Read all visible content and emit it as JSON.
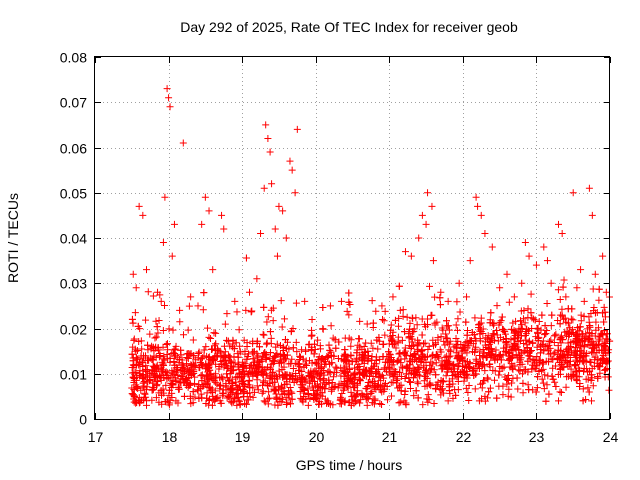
{
  "chart_data": {
    "type": "scatter",
    "title": "Day 292 of 2025, Rate Of TEC Index for receiver geob",
    "xlabel": "GPS time / hours",
    "ylabel": "ROTI / TECUs",
    "xlim": [
      17,
      24
    ],
    "ylim": [
      0,
      0.08
    ],
    "x_ticks": [
      "17",
      "18",
      "19",
      "20",
      "21",
      "22",
      "23",
      "24"
    ],
    "y_ticks": [
      "0",
      "0.01",
      "0.02",
      "0.03",
      "0.04",
      "0.05",
      "0.06",
      "0.07",
      "0.08"
    ],
    "grid": true,
    "marker": "plus",
    "color": "#ff0000",
    "series": [
      {
        "name": "ROTI",
        "points": [
          [
            17.98,
            0.073
          ],
          [
            18.0,
            0.071
          ],
          [
            18.02,
            0.069
          ],
          [
            18.2,
            0.061
          ],
          [
            17.6,
            0.047
          ],
          [
            17.65,
            0.045
          ],
          [
            17.95,
            0.049
          ],
          [
            17.93,
            0.039
          ],
          [
            18.08,
            0.043
          ],
          [
            18.05,
            0.036
          ],
          [
            18.5,
            0.049
          ],
          [
            18.55,
            0.046
          ],
          [
            18.45,
            0.043
          ],
          [
            18.72,
            0.045
          ],
          [
            18.75,
            0.042
          ],
          [
            18.6,
            0.033
          ],
          [
            19.32,
            0.065
          ],
          [
            19.35,
            0.062
          ],
          [
            19.38,
            0.059
          ],
          [
            19.3,
            0.051
          ],
          [
            19.4,
            0.052
          ],
          [
            19.5,
            0.047
          ],
          [
            19.55,
            0.046
          ],
          [
            19.45,
            0.042
          ],
          [
            19.65,
            0.057
          ],
          [
            19.68,
            0.055
          ],
          [
            19.75,
            0.064
          ],
          [
            19.72,
            0.05
          ],
          [
            19.6,
            0.04
          ],
          [
            19.25,
            0.041
          ],
          [
            19.2,
            0.031
          ],
          [
            19.48,
            0.036
          ],
          [
            21.22,
            0.037
          ],
          [
            21.3,
            0.036
          ],
          [
            21.45,
            0.045
          ],
          [
            21.5,
            0.043
          ],
          [
            21.52,
            0.05
          ],
          [
            21.58,
            0.047
          ],
          [
            21.4,
            0.04
          ],
          [
            21.6,
            0.035
          ],
          [
            22.18,
            0.049
          ],
          [
            22.2,
            0.047
          ],
          [
            22.25,
            0.045
          ],
          [
            22.3,
            0.041
          ],
          [
            22.4,
            0.038
          ],
          [
            22.1,
            0.035
          ],
          [
            22.85,
            0.039
          ],
          [
            22.9,
            0.036
          ],
          [
            23.1,
            0.038
          ],
          [
            23.15,
            0.035
          ],
          [
            23.3,
            0.043
          ],
          [
            23.35,
            0.041
          ],
          [
            23.5,
            0.05
          ],
          [
            23.72,
            0.051
          ],
          [
            23.76,
            0.045
          ],
          [
            23.9,
            0.036
          ],
          [
            23.0,
            0.034
          ],
          [
            23.2,
            0.03
          ],
          [
            23.6,
            0.033
          ],
          [
            23.8,
            0.032
          ],
          [
            17.52,
            0.032
          ],
          [
            17.56,
            0.029
          ],
          [
            17.7,
            0.033
          ],
          [
            17.85,
            0.028
          ],
          [
            17.9,
            0.026
          ],
          [
            18.15,
            0.024
          ],
          [
            18.3,
            0.027
          ],
          [
            18.4,
            0.025
          ],
          [
            18.9,
            0.026
          ],
          [
            19.05,
            0.024
          ],
          [
            19.1,
            0.028
          ],
          [
            19.85,
            0.026
          ],
          [
            19.95,
            0.022
          ],
          [
            20.2,
            0.025
          ],
          [
            20.35,
            0.026
          ],
          [
            20.45,
            0.023
          ],
          [
            20.7,
            0.021
          ],
          [
            20.9,
            0.025
          ],
          [
            21.05,
            0.027
          ],
          [
            21.15,
            0.024
          ],
          [
            21.7,
            0.028
          ],
          [
            21.8,
            0.026
          ],
          [
            21.95,
            0.03
          ],
          [
            22.05,
            0.027
          ],
          [
            22.5,
            0.029
          ],
          [
            22.6,
            0.032
          ],
          [
            22.7,
            0.027
          ],
          [
            22.8,
            0.03
          ],
          [
            23.4,
            0.027
          ],
          [
            23.55,
            0.029
          ],
          [
            23.65,
            0.026
          ],
          [
            23.95,
            0.028
          ],
          [
            17.55,
            0.004
          ],
          [
            17.7,
            0.003
          ],
          [
            18.1,
            0.004
          ],
          [
            18.6,
            0.005
          ],
          [
            19.3,
            0.004
          ],
          [
            19.9,
            0.003
          ],
          [
            20.4,
            0.004
          ],
          [
            20.7,
            0.003
          ],
          [
            21.2,
            0.004
          ],
          [
            21.8,
            0.004
          ],
          [
            22.3,
            0.005
          ],
          [
            23.3,
            0.004
          ]
        ],
        "dense_band": {
          "x_range": [
            17.5,
            24.0
          ],
          "y_center": 0.01,
          "y_spread": 0.004,
          "count": 3000
        }
      }
    ]
  }
}
